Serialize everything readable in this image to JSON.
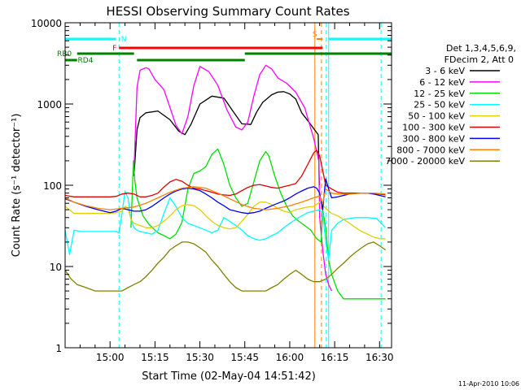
{
  "chart_data": {
    "type": "line",
    "title": "HESSI Observing Summary Count Rates",
    "xlabel": "Start Time (02-May-04 14:51:42)",
    "ylabel": "Count Rate (s⁻¹ detector⁻¹)",
    "yscale": "log",
    "xlim": [
      -7,
      102
    ],
    "ylim": [
      1,
      10000
    ],
    "x_unit": "minutes after 14:52 UT",
    "x_ticks": [
      {
        "x": 8,
        "label": "15:00"
      },
      {
        "x": 23,
        "label": "15:15"
      },
      {
        "x": 38,
        "label": "15:30"
      },
      {
        "x": 53,
        "label": "15:45"
      },
      {
        "x": 68,
        "label": "16:00"
      },
      {
        "x": 83,
        "label": "16:15"
      },
      {
        "x": 98,
        "label": "16:30"
      }
    ],
    "y_ticks": [
      {
        "y": 1,
        "label": "1"
      },
      {
        "y": 10,
        "label": "10"
      },
      {
        "y": 100,
        "label": "100"
      },
      {
        "y": 1000,
        "label": "1000"
      },
      {
        "y": 10000,
        "label": "10000"
      }
    ],
    "timestamp": "11-Apr-2010 10:06",
    "legend": {
      "placement": "right",
      "header": [
        "Det 1,3,4,5,6,9,",
        "FDecim 2, Att 0"
      ]
    },
    "series": [
      {
        "name": "3 - 6 keV",
        "color": "#000000",
        "x": [
          16,
          17,
          18,
          20,
          24,
          28,
          31,
          33,
          35,
          38,
          42,
          46,
          47,
          49,
          52,
          55,
          57,
          59,
          62,
          64,
          66,
          68,
          70,
          72,
          75,
          77.5,
          77.9
        ],
        "y": [
          130,
          480,
          680,
          780,
          820,
          640,
          460,
          420,
          560,
          1000,
          1250,
          1180,
          1050,
          820,
          570,
          560,
          800,
          1050,
          1300,
          1400,
          1420,
          1330,
          1150,
          780,
          560,
          420,
          100
        ]
      },
      {
        "name": "6 - 12 keV",
        "color": "#ff00ff",
        "x": [
          16,
          17,
          18,
          20,
          21,
          23,
          26,
          30,
          32,
          34,
          36,
          38,
          41,
          44,
          47,
          50,
          52,
          54,
          56,
          58,
          60,
          62,
          64,
          67,
          70,
          73,
          76,
          77.7,
          78,
          79,
          80,
          81,
          82
        ],
        "y": [
          150,
          1600,
          2600,
          2800,
          2700,
          2000,
          1500,
          550,
          430,
          700,
          1700,
          2900,
          2500,
          1700,
          850,
          520,
          480,
          600,
          1250,
          2300,
          3000,
          2700,
          2100,
          1800,
          1400,
          900,
          380,
          200,
          40,
          16,
          8,
          6,
          5
        ]
      },
      {
        "name": "12 - 25 keV",
        "color": "#00e000",
        "x": [
          15,
          15.8,
          16.2,
          17,
          19,
          21,
          23,
          24,
          26,
          28,
          30,
          32,
          34,
          36,
          38,
          40,
          42,
          44,
          46,
          48,
          50,
          52,
          54,
          56,
          58,
          60,
          61,
          63,
          65,
          67,
          69,
          71,
          73,
          75,
          77,
          78.5,
          79,
          80,
          81,
          82,
          84,
          86,
          90,
          96,
          100
        ],
        "y": [
          30,
          200,
          120,
          70,
          42,
          33,
          28,
          26,
          24,
          22,
          25,
          35,
          90,
          140,
          150,
          170,
          240,
          280,
          180,
          100,
          70,
          55,
          60,
          110,
          200,
          260,
          230,
          130,
          80,
          55,
          42,
          36,
          32,
          28,
          22,
          20,
          50,
          30,
          12,
          8,
          5,
          4,
          4,
          4,
          4
        ]
      },
      {
        "name": "25 - 50 keV",
        "color": "#00ffff",
        "x": [
          -7,
          -5.5,
          -4,
          -2,
          0,
          3,
          6,
          9,
          10,
          11,
          12,
          13,
          14,
          15,
          16,
          17,
          18,
          20,
          22,
          24,
          26,
          28,
          30,
          32,
          34,
          36,
          38,
          40,
          42,
          44,
          46,
          48,
          50,
          52,
          54,
          56,
          58,
          60,
          62,
          64,
          66,
          68,
          70,
          72,
          74,
          76,
          78,
          79,
          80,
          81,
          82,
          84,
          86,
          90,
          94,
          97,
          100
        ],
        "y": [
          28,
          14,
          28,
          27,
          27,
          27,
          27,
          27,
          27,
          26,
          45,
          85,
          70,
          38,
          30,
          28,
          27,
          26,
          25,
          28,
          45,
          70,
          55,
          40,
          34,
          32,
          30,
          28,
          26,
          28,
          40,
          36,
          32,
          28,
          24,
          22,
          21,
          22,
          24,
          26,
          30,
          34,
          38,
          42,
          46,
          48,
          50,
          45,
          20,
          12,
          28,
          34,
          38,
          40,
          40,
          39,
          30
        ]
      },
      {
        "name": "50 - 100 keV",
        "color": "#e0d000",
        "x": [
          -7,
          -4,
          0,
          4,
          8,
          10,
          12,
          13,
          14,
          15,
          16,
          18,
          20,
          22,
          24,
          26,
          28,
          30,
          32,
          34,
          36,
          38,
          40,
          42,
          44,
          46,
          48,
          50,
          52,
          54,
          56,
          58,
          60,
          62,
          64,
          66,
          68,
          70,
          72,
          74,
          76,
          78,
          80,
          82,
          84,
          86,
          88,
          90,
          92,
          94,
          96,
          98,
          100
        ],
        "y": [
          55,
          45,
          45,
          45,
          45,
          46,
          48,
          55,
          52,
          38,
          34,
          32,
          30,
          30,
          32,
          36,
          42,
          50,
          56,
          58,
          56,
          50,
          42,
          36,
          32,
          30,
          29,
          30,
          36,
          44,
          55,
          62,
          62,
          58,
          52,
          48,
          46,
          50,
          52,
          54,
          55,
          62,
          52,
          45,
          42,
          38,
          34,
          30,
          27,
          25,
          23,
          22,
          22
        ]
      },
      {
        "name": "100 - 300 keV",
        "color": "#dd0000",
        "x": [
          -7,
          -4,
          0,
          4,
          8,
          10,
          12,
          14,
          16,
          18,
          20,
          22,
          24,
          26,
          28,
          30,
          32,
          34,
          36,
          38,
          40,
          42,
          44,
          46,
          48,
          50,
          52,
          54,
          56,
          58,
          60,
          62,
          64,
          66,
          68,
          70,
          72,
          74,
          76,
          77,
          78,
          80,
          82,
          84,
          86,
          88,
          90,
          92,
          94,
          96,
          98,
          100
        ],
        "y": [
          75,
          72,
          72,
          72,
          72,
          73,
          78,
          80,
          78,
          72,
          72,
          75,
          80,
          95,
          110,
          118,
          112,
          100,
          92,
          90,
          86,
          82,
          78,
          76,
          75,
          78,
          86,
          94,
          100,
          102,
          98,
          94,
          92,
          96,
          100,
          105,
          130,
          180,
          250,
          270,
          230,
          100,
          90,
          82,
          80,
          80,
          80,
          80,
          80,
          79,
          78,
          76
        ]
      },
      {
        "name": "300 - 800 keV",
        "color": "#0000ee",
        "x": [
          -7,
          -4,
          0,
          4,
          8,
          10,
          12,
          14,
          16,
          18,
          20,
          22,
          24,
          26,
          28,
          30,
          32,
          34,
          36,
          38,
          40,
          42,
          44,
          46,
          48,
          50,
          52,
          54,
          56,
          58,
          60,
          62,
          64,
          66,
          68,
          70,
          72,
          74,
          76,
          77,
          78,
          79,
          80,
          81,
          82,
          84,
          86,
          88,
          90,
          92,
          94,
          96,
          98,
          100
        ],
        "y": [
          68,
          62,
          55,
          50,
          46,
          48,
          52,
          50,
          48,
          48,
          50,
          55,
          62,
          70,
          78,
          85,
          90,
          92,
          90,
          86,
          78,
          70,
          62,
          56,
          50,
          48,
          46,
          45,
          46,
          48,
          52,
          56,
          60,
          64,
          70,
          78,
          85,
          92,
          96,
          92,
          80,
          50,
          120,
          90,
          70,
          72,
          75,
          78,
          80,
          80,
          80,
          78,
          75,
          72
        ]
      },
      {
        "name": "800 - 7000 keV",
        "color": "#ff8000",
        "x": [
          -7,
          -4,
          0,
          4,
          8,
          12,
          16,
          20,
          24,
          28,
          32,
          36,
          40,
          44,
          48,
          52,
          56,
          60,
          64,
          68,
          72,
          76,
          78,
          79,
          80,
          82,
          84,
          88,
          92,
          96,
          100
        ],
        "y": [
          70,
          62,
          56,
          52,
          50,
          52,
          54,
          60,
          70,
          82,
          92,
          96,
          92,
          80,
          68,
          58,
          52,
          50,
          52,
          56,
          62,
          70,
          74,
          60,
          90,
          80,
          78,
          78,
          80,
          80,
          78
        ]
      },
      {
        "name": "7000 - 20000 keV",
        "color": "#808000",
        "x": [
          -7,
          -5,
          -3,
          0,
          3,
          6,
          9,
          12,
          14,
          16,
          18,
          20,
          22,
          24,
          26,
          28,
          30,
          32,
          34,
          36,
          38,
          40,
          42,
          44,
          46,
          48,
          50,
          52,
          54,
          56,
          58,
          60,
          62,
          64,
          66,
          68,
          70,
          72,
          74,
          76,
          78,
          80,
          82,
          84,
          86,
          88,
          90,
          92,
          94,
          96,
          98,
          100
        ],
        "y": [
          9,
          7,
          6,
          5.5,
          5,
          5,
          5,
          5,
          5.5,
          6,
          6.5,
          7.5,
          9,
          11,
          13,
          16,
          18,
          20,
          20,
          19,
          17,
          15,
          12,
          10,
          8,
          6.5,
          5.5,
          5,
          5,
          5,
          5,
          5,
          5.5,
          6,
          7,
          8,
          9,
          8,
          7,
          6.5,
          6.5,
          7,
          8,
          9.5,
          11,
          13,
          15,
          17,
          19,
          20,
          18,
          16
        ]
      }
    ],
    "annotations": {
      "bars": [
        {
          "label": "N",
          "color": "#00ffff",
          "segments": [
            [
              -7,
              10
            ],
            [
              81,
              102
            ]
          ]
        },
        {
          "label": "F",
          "color": "#ff0000",
          "segments": [
            [
              11,
              79
            ]
          ]
        },
        {
          "label": "S",
          "color": "#ff8000",
          "segments": [
            [
              77,
              79
            ]
          ]
        },
        {
          "label": "RB0",
          "color": "#008000",
          "segments": [
            [
              -3,
              16
            ],
            [
              53,
              102
            ]
          ]
        },
        {
          "label": "RD4",
          "color": "#008000",
          "segments": [
            [
              -7,
              -3
            ],
            [
              17,
              53
            ]
          ]
        }
      ],
      "vlines": [
        {
          "x": -7,
          "color": "#00ffff",
          "dashed": false
        },
        {
          "x": 11,
          "color": "#00ffff",
          "dashed": true
        },
        {
          "x": 76.4,
          "color": "#ff8000",
          "dashed": false
        },
        {
          "x": 78.6,
          "color": "#ff8000",
          "dashed": true
        },
        {
          "x": 80.2,
          "color": "#00ffff",
          "dashed": true
        },
        {
          "x": 81.0,
          "color": "#00ffff",
          "dashed": false
        },
        {
          "x": 98.5,
          "color": "#00ffff",
          "dashed": true
        }
      ]
    }
  }
}
